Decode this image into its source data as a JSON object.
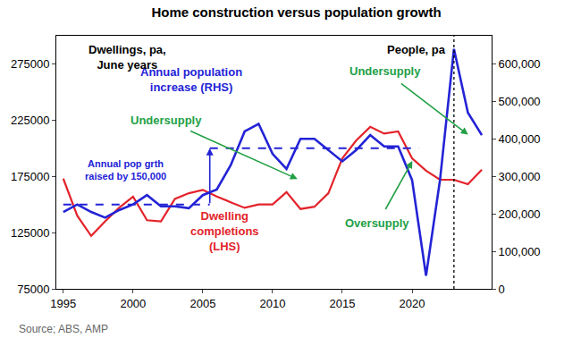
{
  "chart_data": {
    "type": "line",
    "title": "Home construction versus population growth",
    "x": [
      1995,
      1996,
      1997,
      1998,
      1999,
      2000,
      2001,
      2002,
      2003,
      2004,
      2005,
      2006,
      2007,
      2008,
      2009,
      2010,
      2011,
      2012,
      2013,
      2014,
      2015,
      2016,
      2017,
      2018,
      2019,
      2020,
      2021,
      2022,
      2023,
      2024,
      2025
    ],
    "xlim": [
      1994.5,
      2025.7
    ],
    "xticks": [
      1995,
      2000,
      2005,
      2010,
      2015,
      2020
    ],
    "ylim": [
      75000,
      300000
    ],
    "yticks": [
      75000,
      125000,
      175000,
      225000,
      275000
    ],
    "y2lim": [
      0,
      675000
    ],
    "y2ticks": [
      0,
      {
        "value": 100000,
        "label": "100,000"
      },
      {
        "value": 200000,
        "label": "200,000"
      },
      {
        "value": 300000,
        "label": "300,000"
      },
      {
        "value": 400000,
        "label": "400,000"
      },
      {
        "value": 500000,
        "label": "500,000"
      },
      {
        "value": 600000,
        "label": "600,000"
      }
    ],
    "grid": false,
    "series": [
      {
        "name": "Dwelling completions (LHS)",
        "color": "#e3232b",
        "axis": "y",
        "values": [
          173000,
          140000,
          122000,
          135000,
          147000,
          157000,
          136000,
          135000,
          155000,
          160000,
          163000,
          157000,
          152000,
          147000,
          150000,
          150000,
          161000,
          146000,
          148000,
          160000,
          191000,
          207000,
          219000,
          213000,
          215000,
          191000,
          180000,
          172000,
          172000,
          168000,
          181000
        ]
      },
      {
        "name": "Annual population increase (RHS)",
        "color": "#2323d6",
        "axis": "y2",
        "values": [
          205000,
          225000,
          205000,
          190000,
          210000,
          225000,
          250000,
          220000,
          220000,
          215000,
          250000,
          265000,
          330000,
          420000,
          440000,
          360000,
          320000,
          400000,
          400000,
          370000,
          340000,
          370000,
          410000,
          380000,
          380000,
          290000,
          35000,
          290000,
          640000,
          470000,
          410000
        ]
      }
    ],
    "reference_lines": [
      {
        "value": 225000,
        "from": 1995,
        "to": 2005.5,
        "axis": "y2",
        "color": "#2323d6",
        "line_style": "dash"
      },
      {
        "value": 375000,
        "from": 2005.5,
        "to": 2020.5,
        "axis": "y2",
        "color": "#2323d6",
        "line_style": "dash"
      }
    ],
    "vline": 2023,
    "annotations": [
      {
        "text": [
          "Dwellings, pa,",
          "June years"
        ],
        "color": "#000000"
      },
      {
        "text": [
          "People, pa"
        ],
        "color": "#000000"
      },
      {
        "text": [
          "Undersupply"
        ],
        "color": "#23a046"
      },
      {
        "text": [
          "Undersupply"
        ],
        "color": "#23a046"
      },
      {
        "text": [
          "Oversupply"
        ],
        "color": "#23a046"
      },
      {
        "text": [
          "Annual pop grth",
          "raised by 150,000"
        ],
        "color": "#2323d6"
      }
    ],
    "source": "Source; ABS, AMP"
  }
}
